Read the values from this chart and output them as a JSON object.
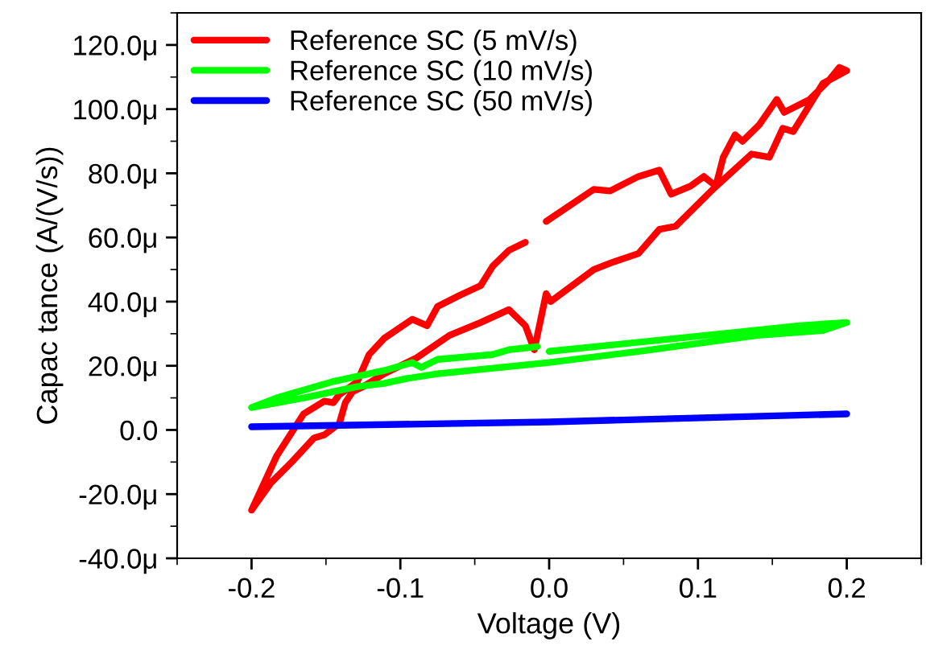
{
  "chart_data": {
    "type": "line",
    "xlabel": "Voltage (V)",
    "ylabel": "Capac tance (A/(V/s))",
    "xlim": [
      -0.25,
      0.25
    ],
    "ylim": [
      -40,
      130
    ],
    "xticks": [
      -0.2,
      -0.1,
      {
        "value": 0,
        "label": "0.0"
      },
      0.1,
      0.2
    ],
    "yticks": [
      {
        "value": -40,
        "label": "-40.0μ"
      },
      {
        "value": -20,
        "label": "-20.0μ"
      },
      {
        "value": 0,
        "label": "0.0"
      },
      {
        "value": 20,
        "label": "20.0μ"
      },
      {
        "value": 40,
        "label": "40.0μ"
      },
      {
        "value": 60,
        "label": "60.0μ"
      },
      {
        "value": 80,
        "label": "80.0μ"
      },
      {
        "value": 100,
        "label": "100.0μ"
      },
      {
        "value": 120,
        "label": "120.0μ"
      }
    ],
    "legend": "top left",
    "grid": false,
    "marker": "none",
    "line_style": "solid",
    "series": [
      {
        "name": "Reference SC (5 mV/s)",
        "color": "#ff0000",
        "x": [
          -0.2,
          -0.183,
          -0.165,
          -0.151,
          -0.145,
          -0.141,
          -0.129,
          -0.121,
          -0.111,
          -0.092,
          -0.082,
          -0.075,
          -0.06,
          -0.046,
          -0.038,
          -0.027,
          -0.016,
          -0.009,
          -0.002,
          0.03,
          0.041,
          0.06,
          0.074,
          0.082,
          0.095,
          0.104,
          0.112,
          0.117,
          0.125,
          0.13,
          0.141,
          0.153,
          0.158,
          0.175,
          0.188,
          0.195,
          0.2,
          0.184,
          0.168,
          0.164,
          0.157,
          0.148,
          0.136,
          0.11,
          0.085,
          0.074,
          0.06,
          0.041,
          0.03,
          0.001,
          -0.002,
          -0.01,
          -0.016,
          -0.027,
          -0.046,
          -0.067,
          -0.089,
          -0.111,
          -0.125,
          -0.132,
          -0.137,
          -0.141,
          -0.151,
          -0.158,
          -0.173,
          -0.187,
          -0.2
        ],
        "values": [
          -25,
          -8,
          5,
          9,
          8.5,
          11,
          15,
          23.5,
          28.5,
          34.5,
          32.5,
          38.5,
          42,
          45,
          51,
          56,
          58.5,
          null,
          65,
          75,
          74.5,
          79,
          81,
          73.5,
          76,
          79,
          76,
          85,
          92,
          90,
          95,
          103,
          99,
          103,
          109,
          113,
          112,
          108,
          96,
          93,
          94,
          85,
          86,
          75,
          63.5,
          62.5,
          55,
          52,
          50,
          40,
          42.5,
          25,
          32.5,
          37.5,
          33.5,
          29.5,
          22.5,
          17.5,
          13.5,
          12,
          8.5,
          2,
          -1.5,
          -2.5,
          -10,
          -16.5,
          -25
        ]
      },
      {
        "name": "Reference SC (10 mV/s)",
        "color": "#00ff00",
        "x": [
          -0.2,
          -0.183,
          -0.146,
          -0.111,
          -0.092,
          -0.086,
          -0.075,
          -0.038,
          -0.027,
          -0.008,
          -0.004,
          0.0,
          0.137,
          0.168,
          0.2,
          0.184,
          0.14,
          0.06,
          0.0,
          -0.075,
          -0.096,
          -0.111,
          -0.129,
          -0.165,
          -0.2
        ],
        "values": [
          7,
          10,
          15,
          18.5,
          21,
          19.5,
          22,
          23.5,
          25,
          26,
          null,
          24.5,
          31,
          32.5,
          33.5,
          31,
          29.5,
          24.5,
          21,
          17.5,
          16,
          14.5,
          13.5,
          10,
          7
        ]
      },
      {
        "name": "Reference SC (50 mV/s)",
        "color": "#0000ff",
        "x": [
          -0.2,
          0.0,
          0.2
        ],
        "values": [
          1,
          2.5,
          5
        ]
      }
    ]
  }
}
